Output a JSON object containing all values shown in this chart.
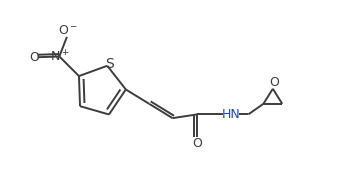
{
  "bg_color": "#ffffff",
  "bond_color": "#3d3d3d",
  "label_color": "#3d3d3d",
  "blue_label_color": "#2244bb",
  "line_width": 1.4,
  "font_size": 9.0,
  "figsize": [
    3.61,
    1.71
  ],
  "dpi": 100,
  "xlim": [
    0.0,
    9.5
  ],
  "ylim": [
    0.3,
    4.8
  ]
}
